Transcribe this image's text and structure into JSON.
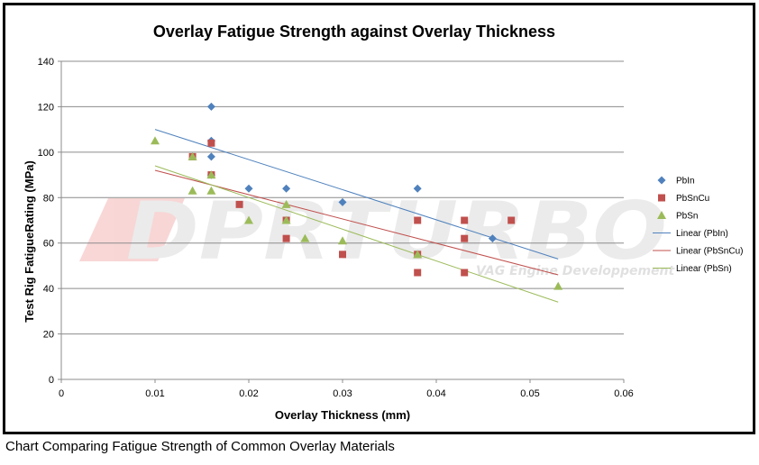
{
  "caption": "Chart Comparing Fatigue Strength of Common Overlay Materials",
  "watermark": {
    "brand": "DPRTURBO",
    "subtitle": "VAG Engine Developpement"
  },
  "chart_data": {
    "type": "scatter",
    "title": "Overlay Fatigue Strength against Overlay Thickness",
    "xlabel": "Overlay Thickness (mm)",
    "ylabel": "Test Rig FatigueRating (MPa)",
    "xlim": [
      0,
      0.06
    ],
    "ylim": [
      0,
      140
    ],
    "xticks": [
      0,
      0.01,
      0.02,
      0.03,
      0.04,
      0.05,
      0.06
    ],
    "xtick_labels": [
      "0",
      "0.01",
      "0.02",
      "0.03",
      "0.04",
      "0.05",
      "0.06"
    ],
    "yticks": [
      0,
      20,
      40,
      60,
      80,
      100,
      120,
      140
    ],
    "ytick_labels": [
      "0",
      "20",
      "40",
      "60",
      "80",
      "100",
      "120",
      "140"
    ],
    "grid": "horizontal",
    "legend_position": "right",
    "series": [
      {
        "name": "PbIn",
        "marker": "diamond",
        "color": "#4F81BD",
        "x": [
          0.016,
          0.016,
          0.016,
          0.016,
          0.02,
          0.024,
          0.03,
          0.038,
          0.046
        ],
        "y": [
          120,
          105,
          98,
          90,
          84,
          84,
          78,
          84,
          62
        ]
      },
      {
        "name": "PbSnCu",
        "marker": "square",
        "color": "#C0504D",
        "x": [
          0.014,
          0.016,
          0.016,
          0.019,
          0.024,
          0.024,
          0.03,
          0.038,
          0.038,
          0.038,
          0.043,
          0.043,
          0.043,
          0.048
        ],
        "y": [
          98,
          104,
          90,
          77,
          70,
          62,
          55,
          70,
          55,
          47,
          70,
          62,
          47,
          70
        ]
      },
      {
        "name": "PbSn",
        "marker": "triangle",
        "color": "#9BBB59",
        "x": [
          0.01,
          0.014,
          0.014,
          0.016,
          0.016,
          0.02,
          0.024,
          0.024,
          0.026,
          0.03,
          0.038,
          0.053
        ],
        "y": [
          105,
          98,
          83,
          83,
          90,
          70,
          77,
          70,
          62,
          61,
          55,
          41
        ]
      }
    ],
    "trendlines": [
      {
        "name": "Linear (PbIn)",
        "color": "#4F81BD",
        "x": [
          0.01,
          0.053
        ],
        "y": [
          110,
          53
        ]
      },
      {
        "name": "Linear (PbSnCu)",
        "color": "#C0504D",
        "x": [
          0.01,
          0.053
        ],
        "y": [
          92,
          46
        ]
      },
      {
        "name": "Linear (PbSn)",
        "color": "#9BBB59",
        "x": [
          0.01,
          0.053
        ],
        "y": [
          94,
          34
        ]
      }
    ]
  }
}
